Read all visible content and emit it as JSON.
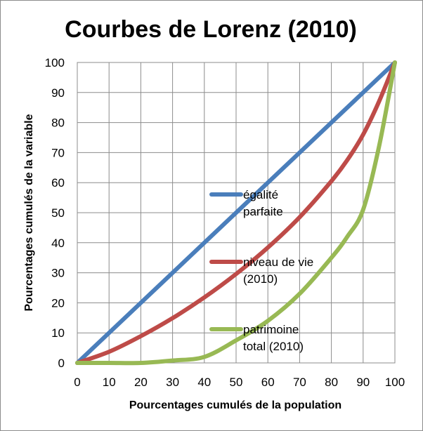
{
  "chart_data": {
    "type": "line",
    "title": "Courbes de Lorenz (2010)",
    "xlabel": "Pourcentages cumulés de la population",
    "ylabel": "Pourcentages cumulés de la variable",
    "xlim": [
      0,
      100
    ],
    "ylim": [
      0,
      100
    ],
    "xticks": [
      0,
      10,
      20,
      30,
      40,
      50,
      60,
      70,
      80,
      90,
      100
    ],
    "yticks": [
      0,
      10,
      20,
      30,
      40,
      50,
      60,
      70,
      80,
      90,
      100
    ],
    "grid": true,
    "legend_position": "inside-center",
    "series": [
      {
        "name": "égalité parfaite",
        "name_lines": [
          "égalité",
          "parfaite"
        ],
        "color": "#4a7ebb",
        "x": [
          0,
          100
        ],
        "y": [
          0,
          100
        ]
      },
      {
        "name": "niveau de vie (2010)",
        "name_lines": [
          "niveau de vie",
          "(2010)"
        ],
        "color": "#be4b48",
        "x": [
          0,
          10,
          20,
          30,
          40,
          50,
          60,
          70,
          80,
          85,
          90,
          95,
          100
        ],
        "y": [
          0,
          3.7,
          8.9,
          14.9,
          21.8,
          29.6,
          38.4,
          48.5,
          60.5,
          67.5,
          76,
          87,
          100
        ]
      },
      {
        "name": "patrimoine total (2010)",
        "name_lines": [
          "patrimoine",
          "total (2010)"
        ],
        "color": "#98b954",
        "x": [
          0,
          10,
          20,
          30,
          40,
          50,
          60,
          70,
          80,
          85,
          90,
          95,
          100
        ],
        "y": [
          0,
          0,
          0,
          0.8,
          2,
          7.5,
          14,
          23,
          35,
          42,
          51,
          72,
          100
        ]
      }
    ]
  }
}
